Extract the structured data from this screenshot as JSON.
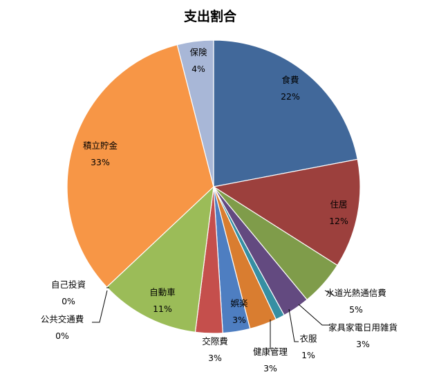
{
  "chart_data": {
    "type": "pie",
    "title": "支出割合",
    "slices": [
      {
        "label": "食費",
        "value": 22,
        "pct_text": "22%",
        "color": "#41689a"
      },
      {
        "label": "住居",
        "value": 12,
        "pct_text": "12%",
        "color": "#9c403d"
      },
      {
        "label": "水道光熱通信費",
        "value": 5,
        "pct_text": "5%",
        "color": "#7f9c4a"
      },
      {
        "label": "家具家電日用雑貨",
        "value": 3,
        "pct_text": "3%",
        "color": "#634a80"
      },
      {
        "label": "衣服",
        "value": 1,
        "pct_text": "1%",
        "color": "#368fa3"
      },
      {
        "label": "健康管理",
        "value": 3,
        "pct_text": "3%",
        "color": "#d97d30"
      },
      {
        "label": "娯楽",
        "value": 3,
        "pct_text": "3%",
        "color": "#4e7ec1"
      },
      {
        "label": "交際費",
        "value": 3,
        "pct_text": "3%",
        "color": "#c54f4c"
      },
      {
        "label": "自動車",
        "value": 11,
        "pct_text": "11%",
        "color": "#9bbc58"
      },
      {
        "label": "公共交通費",
        "value": 0,
        "pct_text": "0%",
        "color": "#8063a1"
      },
      {
        "label": "自己投資",
        "value": 0,
        "pct_text": "0%",
        "color": "#4aacc5"
      },
      {
        "label": "積立貯金",
        "value": 33,
        "pct_text": "33%",
        "color": "#f79646"
      },
      {
        "label": "保険",
        "value": 4,
        "pct_text": "4%",
        "color": "#a8b7d7"
      }
    ]
  }
}
